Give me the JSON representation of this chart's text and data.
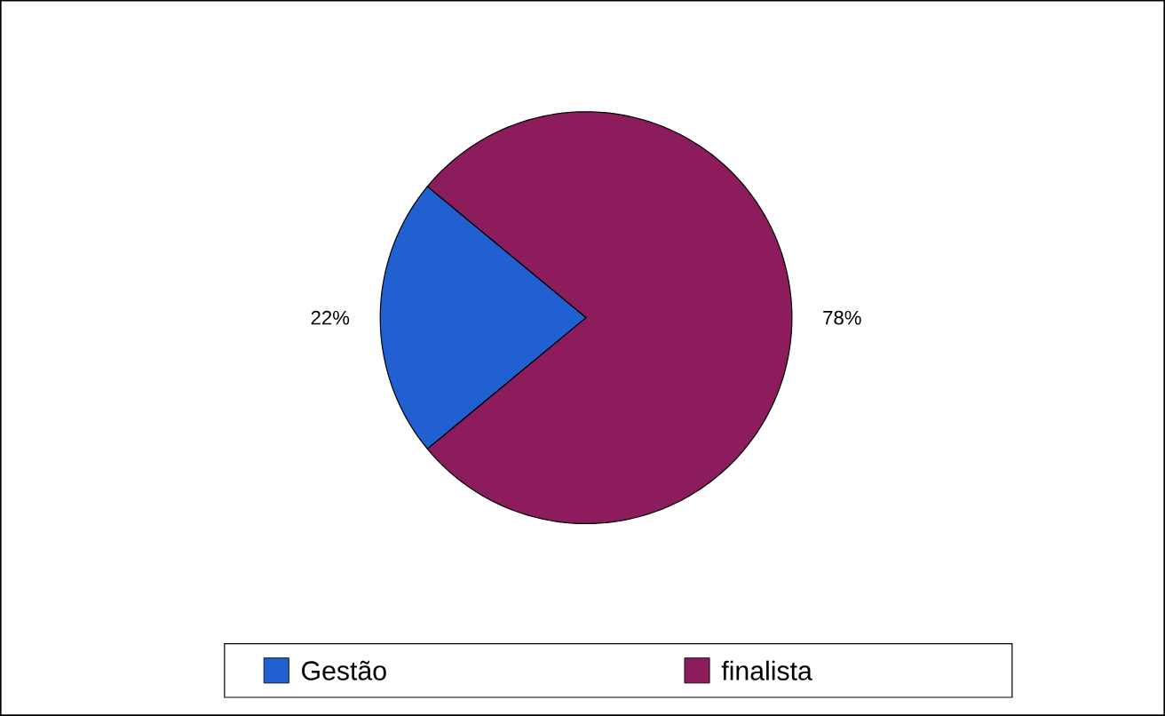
{
  "chart_data": {
    "type": "pie",
    "categories": [
      "Gestão",
      "finalista"
    ],
    "values": [
      22,
      78
    ],
    "colors": [
      "#2060d0",
      "#8c1c5c"
    ],
    "value_labels": [
      "22%",
      "78%"
    ],
    "legend": "bottom"
  }
}
